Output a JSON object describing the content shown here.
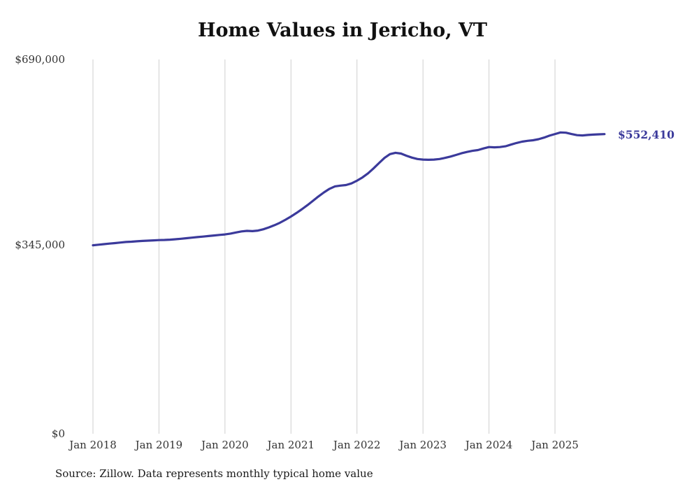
{
  "chart_data": {
    "type": "line",
    "title": "Home Values in Jericho, VT",
    "series_name": "Monthly typical home value",
    "xlabel": "",
    "ylabel": "",
    "ylim": [
      0,
      690000
    ],
    "y_tick_values": [
      690000,
      345000,
      0
    ],
    "y_tick_labels": [
      "$690,000",
      "$345,000",
      "$0"
    ],
    "x_tick_labels": [
      "Jan 2018",
      "Jan 2019",
      "Jan 2020",
      "Jan 2021",
      "Jan 2022",
      "Jan 2023",
      "Jan 2024",
      "Jan 2025"
    ],
    "grid": "vertical-only",
    "legend": "none",
    "line_color": "#3b3a9b",
    "grid_color": "#cfcfcf",
    "end_label": "$552,410",
    "end_value": 552410,
    "x": [
      "2018-01",
      "2018-02",
      "2018-03",
      "2018-04",
      "2018-05",
      "2018-06",
      "2018-07",
      "2018-08",
      "2018-09",
      "2018-10",
      "2018-11",
      "2018-12",
      "2019-01",
      "2019-02",
      "2019-03",
      "2019-04",
      "2019-05",
      "2019-06",
      "2019-07",
      "2019-08",
      "2019-09",
      "2019-10",
      "2019-11",
      "2019-12",
      "2020-01",
      "2020-02",
      "2020-03",
      "2020-04",
      "2020-05",
      "2020-06",
      "2020-07",
      "2020-08",
      "2020-09",
      "2020-10",
      "2020-11",
      "2020-12",
      "2021-01",
      "2021-02",
      "2021-03",
      "2021-04",
      "2021-05",
      "2021-06",
      "2021-07",
      "2021-08",
      "2021-09",
      "2021-10",
      "2021-11",
      "2021-12",
      "2022-01",
      "2022-02",
      "2022-03",
      "2022-04",
      "2022-05",
      "2022-06",
      "2022-07",
      "2022-08",
      "2022-09",
      "2022-10",
      "2022-11",
      "2022-12",
      "2023-01",
      "2023-02",
      "2023-03",
      "2023-04",
      "2023-05",
      "2023-06",
      "2023-07",
      "2023-08",
      "2023-09",
      "2023-10",
      "2023-11",
      "2023-12",
      "2024-01",
      "2024-02",
      "2024-03",
      "2024-04",
      "2024-05",
      "2024-06",
      "2024-07",
      "2024-08",
      "2024-09",
      "2024-10",
      "2024-11",
      "2024-12",
      "2025-01",
      "2025-02",
      "2025-03",
      "2025-04",
      "2025-05",
      "2025-06",
      "2025-07",
      "2025-08",
      "2025-09",
      "2025-10"
    ],
    "values": [
      347500,
      348500,
      349500,
      350500,
      351500,
      352500,
      353500,
      354000,
      354800,
      355500,
      356000,
      356500,
      357000,
      357300,
      357800,
      358500,
      359500,
      360500,
      361500,
      362500,
      363500,
      364500,
      365500,
      366500,
      367500,
      369000,
      371000,
      373000,
      374000,
      373500,
      374500,
      377000,
      380500,
      384500,
      389000,
      394500,
      400500,
      407000,
      414000,
      421500,
      429500,
      437500,
      445000,
      451500,
      456000,
      457500,
      458500,
      461500,
      466500,
      472500,
      480000,
      489000,
      499000,
      508500,
      515500,
      518000,
      516500,
      512500,
      509000,
      506500,
      505500,
      505000,
      505500,
      506500,
      508500,
      511000,
      514000,
      517000,
      519500,
      521500,
      523000,
      526000,
      528500,
      528000,
      528500,
      530000,
      533000,
      536000,
      538500,
      540000,
      541000,
      543000,
      546000,
      549500,
      552500,
      555500,
      555000,
      552500,
      550500,
      550000,
      550800,
      551500,
      552000,
      552410
    ]
  },
  "footer": {
    "source": "Source: Zillow. Data represents monthly typical home value"
  }
}
